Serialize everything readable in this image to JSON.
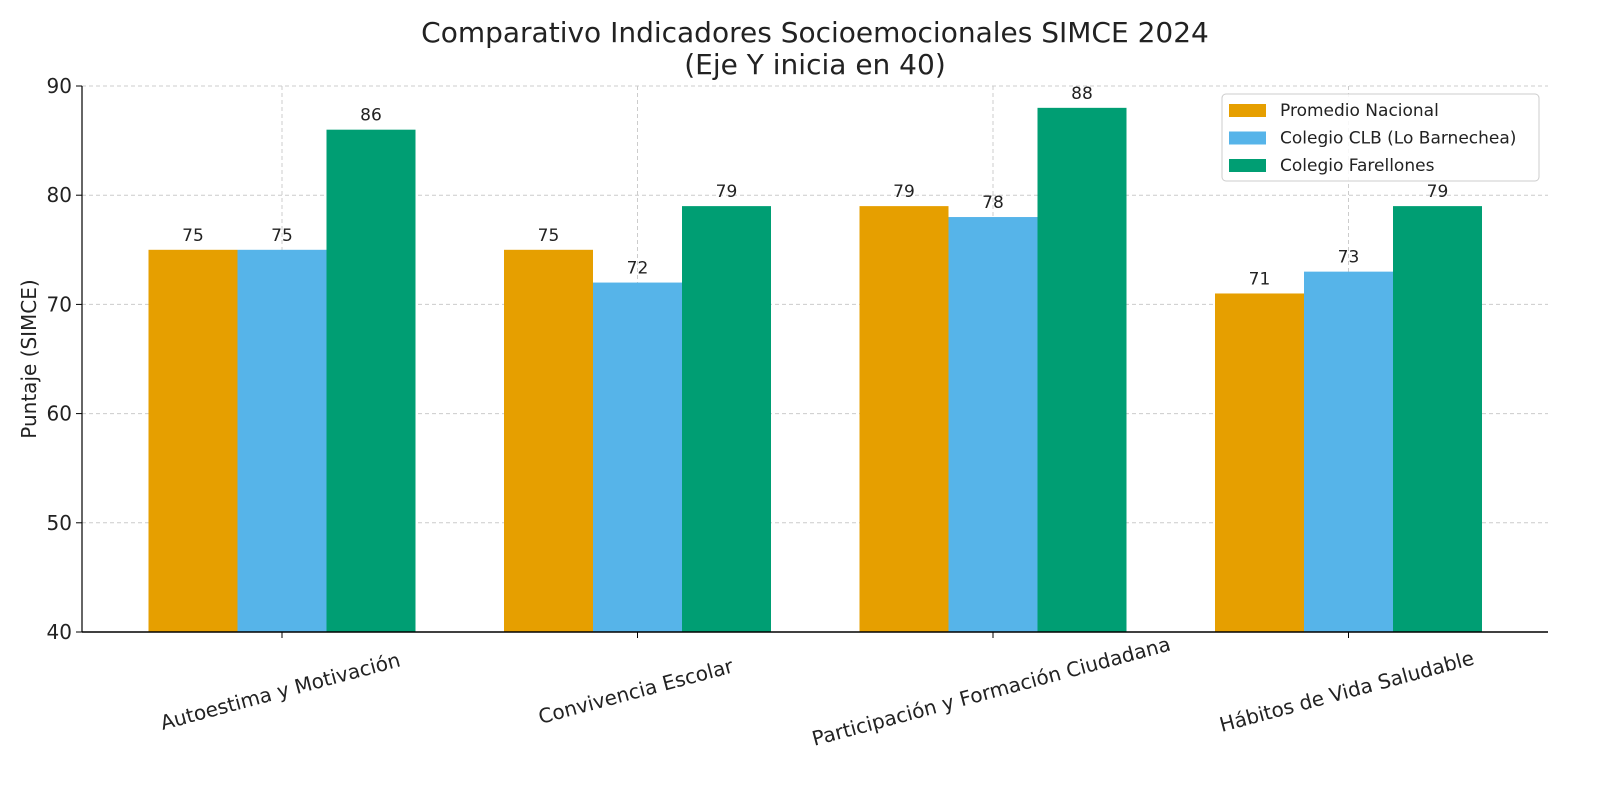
{
  "chart_data": {
    "type": "bar",
    "title": "Comparativo Indicadores Socioemocionales SIMCE 2024",
    "subtitle": "(Eje Y inicia en 40)",
    "xlabel": "",
    "ylabel": "Puntaje (SIMCE)",
    "ylim": [
      40,
      90
    ],
    "yticks": [
      40,
      50,
      60,
      70,
      80,
      90
    ],
    "grid": true,
    "legend_position": "top-right",
    "categories": [
      "Autoestima y Motivación",
      "Convivencia Escolar",
      "Participación y Formación Ciudadana",
      "Hábitos de Vida Saludable"
    ],
    "series": [
      {
        "name": "Promedio Nacional",
        "color": "#E69F00",
        "values": [
          75,
          75,
          79,
          71
        ]
      },
      {
        "name": "Colegio CLB (Lo Barnechea)",
        "color": "#56B4E9",
        "values": [
          75,
          72,
          78,
          73
        ]
      },
      {
        "name": "Colegio Farellones",
        "color": "#009E73",
        "values": [
          86,
          79,
          88,
          79
        ]
      }
    ]
  }
}
